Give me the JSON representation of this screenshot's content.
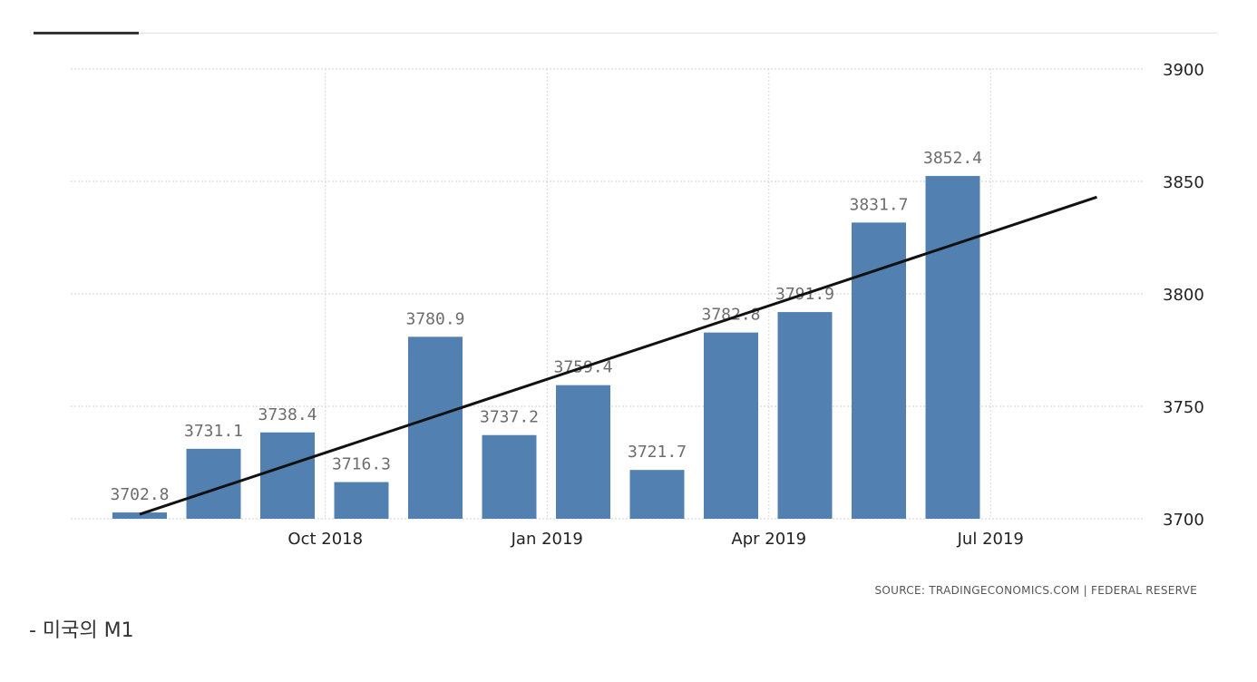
{
  "chart_data": {
    "type": "bar",
    "categories": [
      "2018-08",
      "2018-09",
      "2018-10",
      "2018-11",
      "2018-12",
      "2019-01",
      "2019-02",
      "2019-03",
      "2019-04",
      "2019-05",
      "2019-06",
      "2019-07"
    ],
    "values": [
      3702.8,
      3731.1,
      3738.4,
      3716.3,
      3780.9,
      3737.2,
      3759.4,
      3721.7,
      3782.8,
      3791.9,
      3831.7,
      3852.4
    ],
    "value_labels": [
      "3702.8",
      "3731.1",
      "3738.4",
      "3716.3",
      "3780.9",
      "3737.2",
      "3759.4",
      "3721.7",
      "3782.8",
      "3791.9",
      "3831.7",
      "3852.4"
    ],
    "ylim": [
      3700,
      3900
    ],
    "yticks": [
      "3700",
      "3750",
      "3800",
      "3850",
      "3900"
    ],
    "xtick_labels": [
      {
        "category": "2018-10",
        "label": "Oct 2018"
      },
      {
        "category": "2019-01",
        "label": "Jan 2019"
      },
      {
        "category": "2019-04",
        "label": "Apr 2019"
      },
      {
        "category": "2019-07",
        "label": "Jul 2019"
      }
    ],
    "trendline": {
      "start_value": 3702,
      "end_value": 3843,
      "extends_past_last": true
    },
    "grid": true,
    "bar_color": "#5280b0",
    "source": "SOURCE: TRADINGECONOMICS.COM  |  FEDERAL RESERVE"
  },
  "caption": "- 미국의 M1"
}
